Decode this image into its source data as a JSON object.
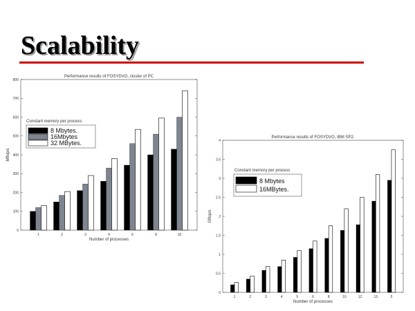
{
  "slide": {
    "title": "Scalability"
  },
  "colors": {
    "rule": "#cc0000",
    "black": "#000000",
    "gray": "#7f8590",
    "white": "#ffffff"
  },
  "chart_data": [
    {
      "type": "bar",
      "title": "Performance results of FOSYDVO, cluster of PC",
      "xlabel": "Number of processes",
      "ylabel": "Mflop/s",
      "categories": [
        "1",
        "2",
        "3",
        "4",
        "6",
        "8",
        "10"
      ],
      "ylim": [
        0,
        800
      ],
      "yticks": [
        "0",
        "100",
        "200",
        "300",
        "400",
        "500",
        "600",
        "700",
        "800"
      ],
      "legend_title": "Constant memory per process",
      "series": [
        {
          "name": "8 Mbytes.",
          "color": "black",
          "values": [
            100,
            150,
            210,
            260,
            345,
            400,
            430
          ]
        },
        {
          "name": "16Mbytes",
          "color": "gray",
          "values": [
            120,
            185,
            245,
            330,
            460,
            510,
            600
          ]
        },
        {
          "name": "32 MBytes.",
          "color": "white",
          "values": [
            130,
            205,
            290,
            380,
            535,
            595,
            740
          ]
        }
      ]
    },
    {
      "type": "bar",
      "title": "Performance results of FOSYDVO, IBM SP2.",
      "xlabel": "Number of processes",
      "ylabel": "Gflop/s",
      "categories": [
        "1",
        "2",
        "3",
        "4",
        "5",
        "6",
        "8",
        "10",
        "12",
        "13",
        "5"
      ],
      "ylim": [
        0,
        4
      ],
      "yticks": [
        "0",
        "0.5",
        "1",
        "1.5",
        "2",
        "2.5",
        "3",
        "3.5",
        "4"
      ],
      "legend_title": "Constant memory per process",
      "series": [
        {
          "name": "8 Mbytes",
          "color": "black",
          "values": [
            0.2,
            0.35,
            0.58,
            0.68,
            0.92,
            1.15,
            1.42,
            1.63,
            1.78,
            2.4,
            2.95
          ]
        },
        {
          "name": "16MBytes.",
          "color": "white",
          "values": [
            0.26,
            0.43,
            0.68,
            0.85,
            1.1,
            1.35,
            1.75,
            2.2,
            2.5,
            3.1,
            3.75
          ]
        }
      ]
    }
  ]
}
